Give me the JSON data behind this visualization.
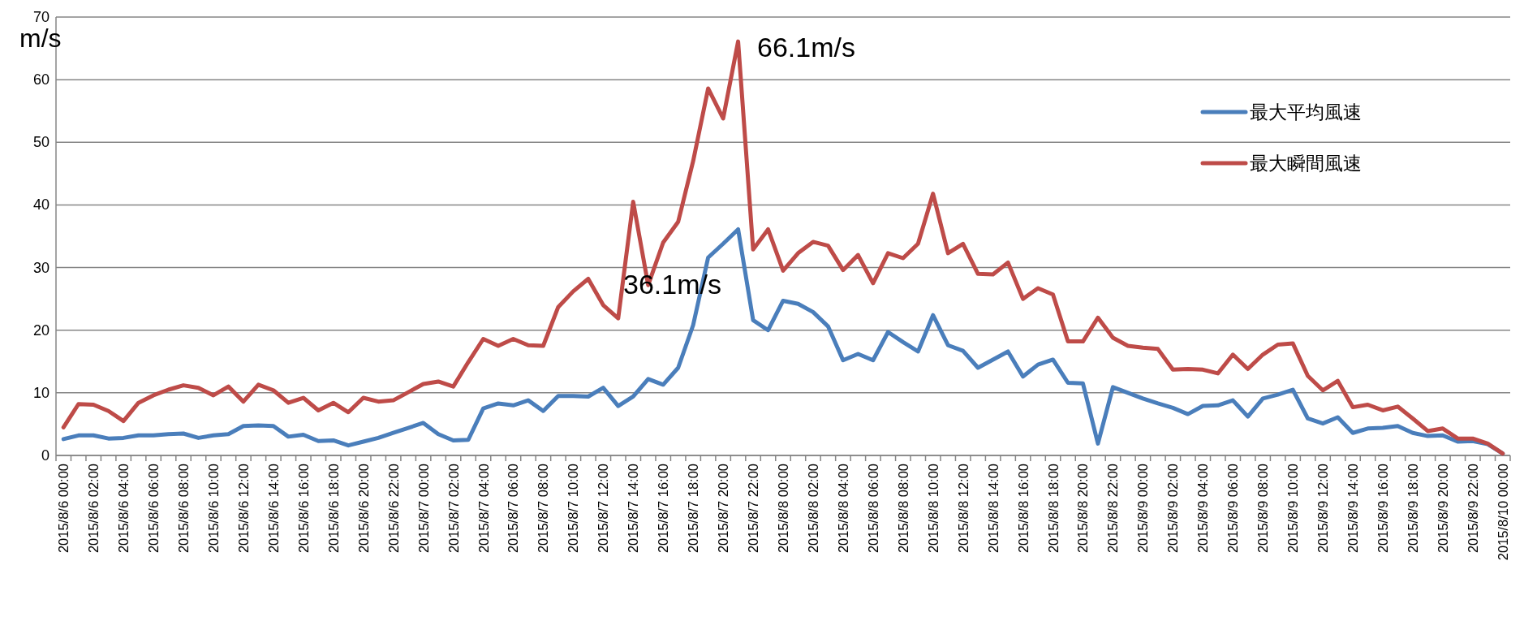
{
  "chart_data": {
    "type": "line",
    "ylabel": "m/s",
    "categories": [
      "2015/8/6 00:00",
      null,
      "2015/8/6 02:00",
      null,
      "2015/8/6 04:00",
      null,
      "2015/8/6 06:00",
      null,
      "2015/8/6 08:00",
      null,
      "2015/8/6 10:00",
      null,
      "2015/8/6 12:00",
      null,
      "2015/8/6 14:00",
      null,
      "2015/8/6 16:00",
      null,
      "2015/8/6 18:00",
      null,
      "2015/8/6 20:00",
      null,
      "2015/8/6 22:00",
      null,
      "2015/8/7 00:00",
      null,
      "2015/8/7 02:00",
      null,
      "2015/8/7 04:00",
      null,
      "2015/8/7 06:00",
      null,
      "2015/8/7 08:00",
      null,
      "2015/8/7 10:00",
      null,
      "2015/8/7 12:00",
      null,
      "2015/8/7 14:00",
      null,
      "2015/8/7 16:00",
      null,
      "2015/8/7 18:00",
      null,
      "2015/8/7 20:00",
      null,
      "2015/8/7 22:00",
      null,
      "2015/8/8 00:00",
      null,
      "2015/8/8 02:00",
      null,
      "2015/8/8 04:00",
      null,
      "2015/8/8 06:00",
      null,
      "2015/8/8 08:00",
      null,
      "2015/8/8 10:00",
      null,
      "2015/8/8 12:00",
      null,
      "2015/8/8 14:00",
      null,
      "2015/8/8 16:00",
      null,
      "2015/8/8 18:00",
      null,
      "2015/8/8 20:00",
      null,
      "2015/8/8 22:00",
      null,
      "2015/8/9 00:00",
      null,
      "2015/8/9 02:00",
      null,
      "2015/8/9 04:00",
      null,
      "2015/8/9 06:00",
      null,
      "2015/8/9 08:00",
      null,
      "2015/8/9 10:00",
      null,
      "2015/8/9 12:00",
      null,
      "2015/8/9 14:00",
      null,
      "2015/8/9 16:00",
      null,
      "2015/8/9 18:00",
      null,
      "2015/8/9 20:00",
      null,
      "2015/8/9 22:00",
      null,
      "2015/8/10 00:00"
    ],
    "series": [
      {
        "name": "最大平均風速",
        "color": "#4a7ebb",
        "values": [
          2.6,
          3.2,
          3.2,
          2.7,
          2.8,
          3.2,
          3.2,
          3.4,
          3.5,
          2.8,
          3.2,
          3.4,
          4.7,
          4.8,
          4.7,
          3.0,
          3.3,
          2.3,
          2.4,
          1.6,
          2.2,
          2.8,
          3.6,
          4.4,
          5.2,
          3.4,
          2.4,
          2.5,
          7.5,
          8.3,
          8.0,
          8.8,
          7.1,
          9.5,
          9.5,
          9.4,
          10.8,
          7.9,
          9.4,
          12.2,
          11.3,
          14.0,
          20.8,
          31.6,
          33.8,
          36.1,
          21.6,
          20.0,
          24.7,
          24.2,
          22.9,
          20.6,
          15.2,
          16.2,
          15.2,
          19.7,
          18.1,
          16.6,
          22.4,
          17.6,
          16.7,
          14.0,
          15.3,
          16.6,
          12.6,
          14.5,
          15.3,
          11.6,
          11.5,
          1.9,
          10.9,
          10.0,
          9.1,
          8.3,
          7.6,
          6.6,
          7.9,
          8.0,
          8.8,
          6.2,
          9.1,
          9.7,
          10.5,
          5.9,
          5.1,
          6.1,
          3.6,
          4.3,
          4.4,
          4.7,
          3.6,
          3.1,
          3.2,
          2.2,
          2.3,
          1.8,
          0.3
        ]
      },
      {
        "name": "最大瞬間風速",
        "color": "#be4b48",
        "values": [
          4.5,
          8.2,
          8.1,
          7.1,
          5.5,
          8.4,
          9.6,
          10.5,
          11.2,
          10.8,
          9.6,
          11.0,
          8.6,
          11.3,
          10.4,
          8.4,
          9.2,
          7.2,
          8.4,
          6.9,
          9.2,
          8.6,
          8.8,
          10.1,
          11.4,
          11.8,
          11.0,
          14.9,
          18.6,
          17.5,
          18.6,
          17.6,
          17.5,
          23.7,
          26.2,
          28.2,
          24.0,
          21.9,
          40.5,
          27.2,
          34.0,
          37.3,
          47.0,
          58.6,
          53.8,
          66.1,
          32.9,
          36.1,
          29.5,
          32.3,
          34.1,
          33.5,
          29.6,
          32.0,
          27.5,
          32.3,
          31.5,
          33.8,
          41.8,
          32.3,
          33.8,
          29.0,
          28.9,
          30.8,
          25.0,
          26.7,
          25.7,
          18.2,
          18.2,
          22.0,
          18.8,
          17.5,
          17.2,
          17.0,
          13.7,
          13.8,
          13.7,
          13.1,
          16.1,
          13.8,
          16.1,
          17.7,
          17.9,
          12.7,
          10.4,
          11.9,
          7.7,
          8.1,
          7.2,
          7.8,
          5.9,
          3.9,
          4.3,
          2.7,
          2.7,
          1.9,
          0.3
        ]
      }
    ],
    "annotations": [
      "66.1m/s",
      "36.1m/s"
    ],
    "ylim": [
      0,
      70
    ],
    "yticks": [
      0,
      10,
      20,
      30,
      40,
      50,
      60,
      70
    ],
    "grid": "y",
    "legend": "top right",
    "marker": "none",
    "line_style": "solid"
  }
}
